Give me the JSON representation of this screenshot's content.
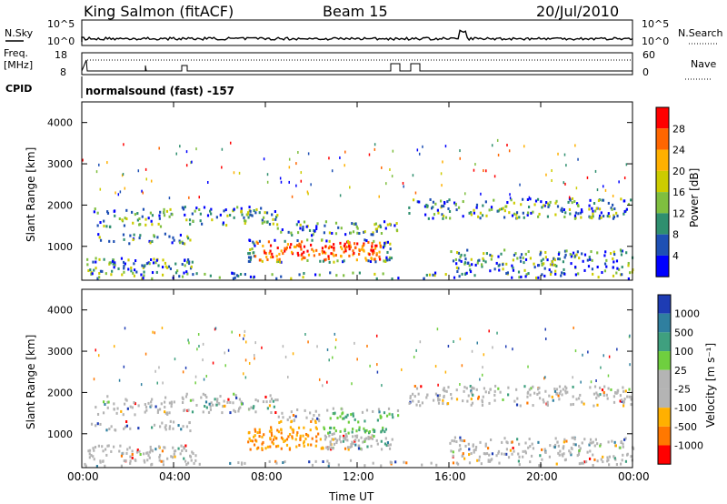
{
  "header": {
    "station": "King Salmon (fitACF)",
    "beam": "Beam 15",
    "date": "20/Jul/2010"
  },
  "top_panels": {
    "nsky_label": "N.Sky",
    "nsearch_label": "N.Search",
    "nsky_ticks": [
      "10^5",
      "10^0"
    ],
    "nsky_right_ticks": [
      "10^5",
      "10^0"
    ],
    "freq_label": "Freq.",
    "freq_unit": "[MHz]",
    "freq_ticks": [
      "18",
      "8"
    ],
    "nave_label": "Nave",
    "nave_ticks": [
      "60",
      "0"
    ],
    "cpid_label": "CPID",
    "cpid_text": "normalsound (fast) -157"
  },
  "chart_data": [
    {
      "type": "heatmap",
      "name": "power",
      "ylabel": "Slant Range [km]",
      "ylim": [
        180,
        4500
      ],
      "yticks": [
        "1000",
        "2000",
        "3000",
        "4000"
      ],
      "xticks": [
        "00:00",
        "04:00",
        "08:00",
        "12:00",
        "16:00",
        "20:00",
        "00:00"
      ],
      "colorbar_label": "Power [dB]",
      "colorbar_ticks": [
        "28",
        "24",
        "20",
        "16",
        "12",
        "8",
        "4"
      ],
      "colors": [
        "#ff0000",
        "#ff6600",
        "#ffb000",
        "#cccc00",
        "#7fbf3f",
        "#2f8f6f",
        "#1e50b4",
        "#0000ff"
      ]
    },
    {
      "type": "heatmap",
      "name": "velocity",
      "ylabel": "Slant Range [km]",
      "ylim": [
        180,
        4500
      ],
      "yticks": [
        "1000",
        "2000",
        "3000",
        "4000"
      ],
      "xticks": [
        "00:00",
        "04:00",
        "08:00",
        "12:00",
        "16:00",
        "20:00",
        "00:00"
      ],
      "xlabel": "Time UT",
      "colorbar_label": "Velocity [m s⁻¹]",
      "colorbar_ticks": [
        "1000",
        "500",
        "100",
        "25",
        "-25",
        "-100",
        "-500",
        "-1000"
      ],
      "colors": [
        "#1e3cb4",
        "#2f7f9f",
        "#3fa07f",
        "#6fcf3f",
        "#b4b4b4",
        "#b4b4b4",
        "#ffb000",
        "#ff7800",
        "#ff0000"
      ]
    }
  ]
}
